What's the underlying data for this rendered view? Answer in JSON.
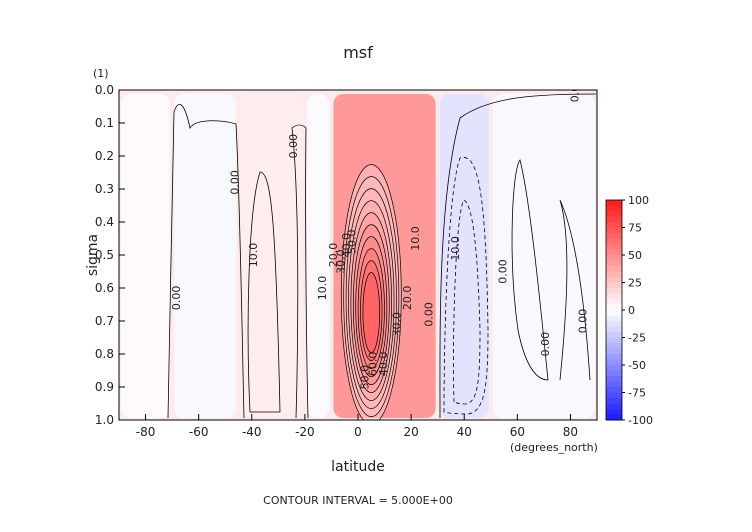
{
  "chart_data": {
    "type": "heatmap",
    "title": "msf",
    "xlabel": "latitude",
    "ylabel": "sigma",
    "x_units": "(degrees_north)",
    "y_units": "(1)",
    "xlim": [
      -90,
      90
    ],
    "ylim": [
      0.0,
      1.0
    ],
    "y_inverted": true,
    "x_ticks": [
      -80,
      -60,
      -40,
      -20,
      0,
      20,
      40,
      60,
      80
    ],
    "x_tick_labels": [
      "-80",
      "-60",
      "-40",
      "-20",
      "0",
      "20",
      "40",
      "60",
      "80"
    ],
    "y_ticks": [
      0.0,
      0.1,
      0.2,
      0.3,
      0.4,
      0.5,
      0.6,
      0.7,
      0.8,
      0.9,
      1.0
    ],
    "y_tick_labels": [
      "0.0",
      "0.1",
      "0.2",
      "0.3",
      "0.4",
      "0.5",
      "0.6",
      "0.7",
      "0.8",
      "0.9",
      "1.0"
    ],
    "colorbar": {
      "range": [
        -100,
        100
      ],
      "tick_values": [
        100,
        75,
        50,
        25,
        0,
        -25,
        -50,
        -75,
        -100
      ],
      "tick_labels": [
        "100",
        "75",
        "50",
        "25",
        "0",
        "-25",
        "-50",
        "-75",
        "-100"
      ]
    },
    "cells": [
      {
        "lat_range": [
          -90,
          -70
        ],
        "value": 2
      },
      {
        "lat_range": [
          -70,
          -45
        ],
        "value": -3
      },
      {
        "lat_range": [
          -45,
          -20
        ],
        "value": 8
      },
      {
        "lat_range": [
          -20,
          -10
        ],
        "value": -2
      },
      {
        "lat_range": [
          -10,
          30
        ],
        "value": 45
      },
      {
        "lat_range": [
          30,
          50
        ],
        "value": -12
      },
      {
        "lat_range": [
          50,
          90
        ],
        "value": -3
      }
    ],
    "contour_labels": [
      {
        "text": "0.00",
        "lat": 83,
        "sigma": 0.0
      },
      {
        "text": "0.00",
        "lat": -23,
        "sigma": 0.17
      },
      {
        "text": "0.00",
        "lat": -45,
        "sigma": 0.28
      },
      {
        "text": "0.00",
        "lat": -67,
        "sigma": 0.63
      },
      {
        "text": "10.0",
        "lat": -38,
        "sigma": 0.5
      },
      {
        "text": "10.0",
        "lat": -12,
        "sigma": 0.6
      },
      {
        "text": "20.0",
        "lat": -8,
        "sigma": 0.5
      },
      {
        "text": "30.0",
        "lat": -5,
        "sigma": 0.52
      },
      {
        "text": "40.0",
        "lat": -3,
        "sigma": 0.47
      },
      {
        "text": "50.0",
        "lat": -1,
        "sigma": 0.46
      },
      {
        "text": "10.0",
        "lat": 23,
        "sigma": 0.45
      },
      {
        "text": "20.0",
        "lat": 20,
        "sigma": 0.63
      },
      {
        "text": "30.0",
        "lat": 16,
        "sigma": 0.71
      },
      {
        "text": "40.0",
        "lat": 11,
        "sigma": 0.83
      },
      {
        "text": "50.0",
        "lat": 4,
        "sigma": 0.87
      },
      {
        "text": "60.0",
        "lat": 7,
        "sigma": 0.83
      },
      {
        "text": "0.00",
        "lat": 28,
        "sigma": 0.68
      },
      {
        "text": "10.0",
        "lat": 38,
        "sigma": 0.48
      },
      {
        "text": "0.00",
        "lat": 56,
        "sigma": 0.55
      },
      {
        "text": "0.00",
        "lat": 72,
        "sigma": 0.77
      },
      {
        "text": "0.00",
        "lat": 86,
        "sigma": 0.7
      }
    ],
    "footer": "CONTOUR INTERVAL = 5.000E+00"
  }
}
